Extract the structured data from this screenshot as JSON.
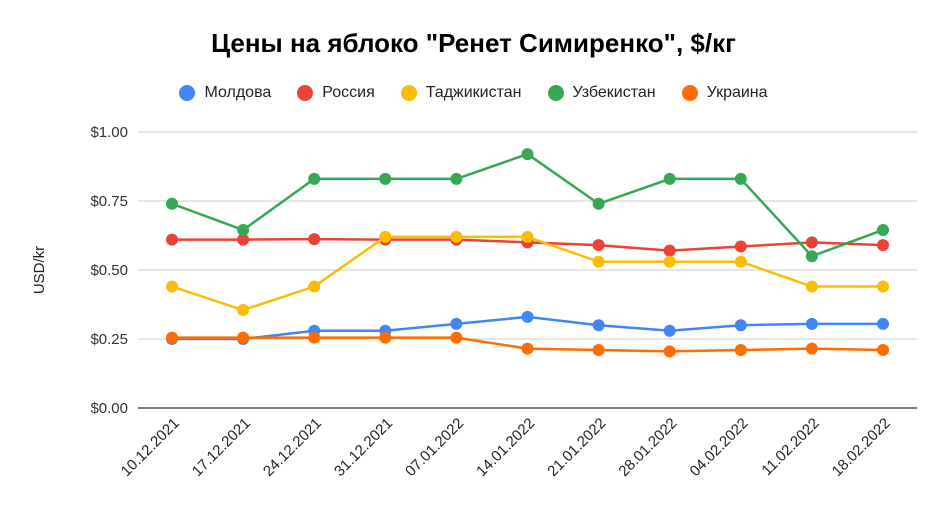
{
  "chart_data": {
    "type": "line",
    "title": "Цены на яблоко \"Ренет Симиренко\", $/кг",
    "xlabel": "",
    "ylabel": "USD/kr",
    "ylim": [
      0,
      1
    ],
    "yticks": [
      0,
      0.25,
      0.5,
      0.75,
      1.0
    ],
    "ytick_labels": [
      "$0.00",
      "$0.25",
      "$0.50",
      "$0.75",
      "$1.00"
    ],
    "grid": true,
    "legend_position": "top",
    "categories": [
      "10.12.2021",
      "17.12.2021",
      "24.12.2021",
      "31.12.2021",
      "07.01.2022",
      "14.01.2022",
      "21.01.2022",
      "28.01.2022",
      "04.02.2022",
      "11.02.2022",
      "18.02.2022"
    ],
    "series": [
      {
        "name": "Молдова",
        "color": "#4285F4",
        "values": [
          0.25,
          0.25,
          0.28,
          0.28,
          0.305,
          0.33,
          0.3,
          0.28,
          0.3,
          0.305,
          0.305
        ]
      },
      {
        "name": "Россия",
        "color": "#EA4335",
        "values": [
          0.61,
          0.61,
          0.612,
          0.61,
          0.61,
          0.6,
          0.59,
          0.57,
          0.585,
          0.6,
          0.59
        ]
      },
      {
        "name": "Таджикистан",
        "color": "#FBBC04",
        "values": [
          0.44,
          0.355,
          0.44,
          0.62,
          0.62,
          0.62,
          0.53,
          0.53,
          0.53,
          0.44,
          0.44
        ]
      },
      {
        "name": "Узбекистан",
        "color": "#34A853",
        "values": [
          0.74,
          0.645,
          0.83,
          0.83,
          0.83,
          0.92,
          0.74,
          0.83,
          0.83,
          0.55,
          0.645
        ]
      },
      {
        "name": "Украина",
        "color": "#FF6D01",
        "values": [
          0.255,
          0.255,
          0.255,
          0.255,
          0.255,
          0.215,
          0.21,
          0.205,
          0.21,
          0.215,
          0.21
        ]
      }
    ]
  }
}
